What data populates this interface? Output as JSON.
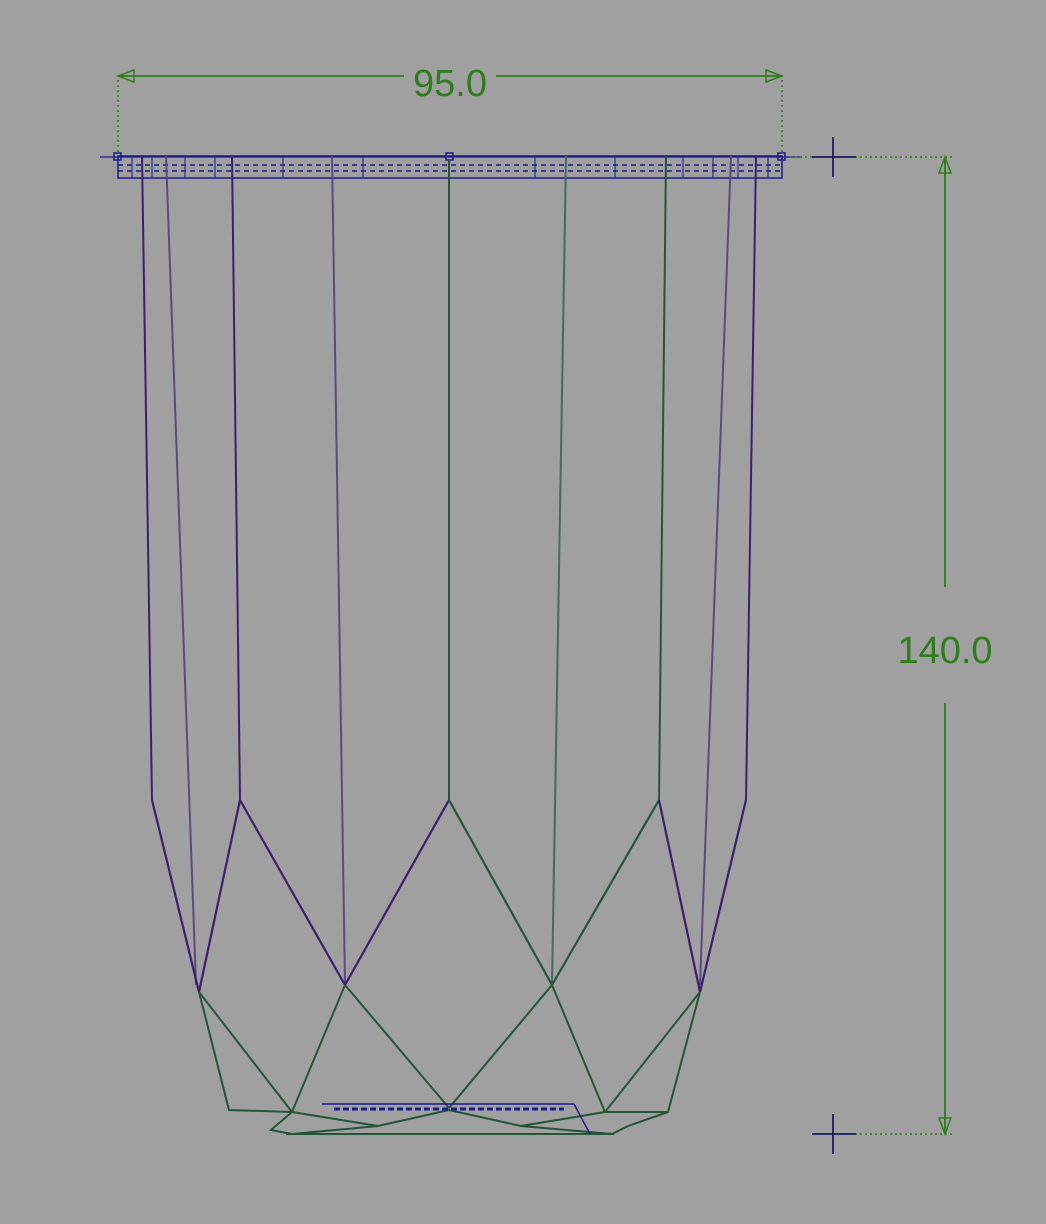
{
  "colors": {
    "background": "#a0a0a0",
    "dimension": "#2f7d1c",
    "wire_purple": "#3a1f6b",
    "wire_green": "#24553a",
    "wire_gray": "#555566",
    "outline_blue": "#1a1a8c"
  },
  "dimensions": {
    "width": {
      "label": "95.0",
      "value": 95.0
    },
    "height": {
      "label": "140.0",
      "value": 140.0
    }
  }
}
